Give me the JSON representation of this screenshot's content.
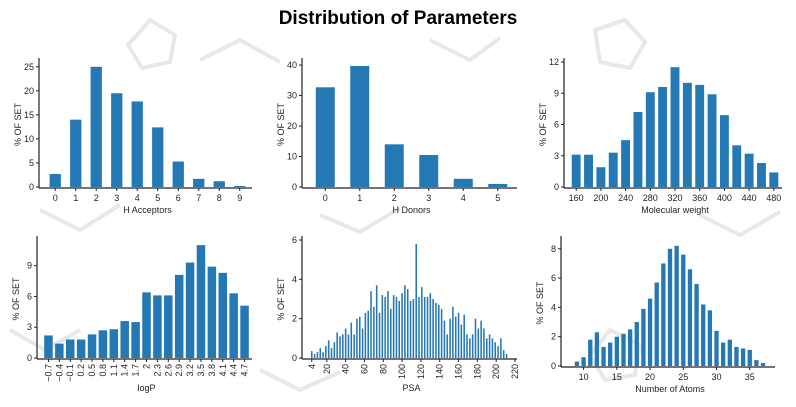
{
  "title": "Distribution of Parameters",
  "colors": {
    "bar": "#2478b4",
    "axis": "#222222",
    "decor": "#e6e6e6"
  },
  "chart_data": [
    {
      "type": "bar",
      "title": "",
      "xlabel": "H Acceptors",
      "ylabel": "% OF SET",
      "categories": [
        "0",
        "1",
        "2",
        "3",
        "4",
        "5",
        "6",
        "7",
        "8",
        "9"
      ],
      "values": [
        2.7,
        14.0,
        25.0,
        19.5,
        17.8,
        12.4,
        5.3,
        1.7,
        1.2,
        0.2
      ],
      "ylim": [
        0,
        26
      ],
      "yticks": [
        0,
        5,
        10,
        15,
        20,
        25
      ],
      "grid": false
    },
    {
      "type": "bar",
      "title": "",
      "xlabel": "H Donors",
      "ylabel": "% OF SET",
      "categories": [
        "0",
        "1",
        "2",
        "3",
        "4",
        "5"
      ],
      "values": [
        32.7,
        39.7,
        14.0,
        10.5,
        2.7,
        1.0
      ],
      "ylim": [
        0,
        41
      ],
      "yticks": [
        0,
        10,
        20,
        30,
        40
      ],
      "grid": false
    },
    {
      "type": "bar",
      "title": "",
      "xlabel": "Molecular weight",
      "ylabel": "% OF SET",
      "x": [
        160,
        180,
        200,
        220,
        240,
        260,
        280,
        300,
        320,
        340,
        360,
        380,
        400,
        420,
        440,
        460,
        480
      ],
      "values": [
        3.1,
        3.1,
        1.9,
        3.3,
        4.5,
        7.2,
        9.1,
        9.6,
        11.5,
        10.0,
        9.8,
        8.9,
        6.9,
        4.0,
        3.2,
        2.3,
        1.4
      ],
      "xticks": [
        160,
        200,
        240,
        280,
        320,
        360,
        400,
        440,
        480
      ],
      "xlim": [
        150,
        490
      ],
      "ylim": [
        0,
        12
      ],
      "yticks": [
        0,
        3,
        6,
        9,
        12
      ],
      "grid": false
    },
    {
      "type": "bar",
      "title": "",
      "xlabel": "logP",
      "ylabel": "% OF SET",
      "categories": [
        "-0.7",
        "-0.4",
        "-0.1",
        "0.2",
        "0.5",
        "0.8",
        "1.1",
        "1.4",
        "1.7",
        "2",
        "2.3",
        "2.6",
        "2.9",
        "3.2",
        "3.5",
        "3.8",
        "4.1",
        "4.4",
        "4.7"
      ],
      "tick_labels": [
        "−0.7",
        "−0.4",
        "−0.1",
        "0.2",
        "0.5",
        "0.8",
        "1.1",
        "1.4",
        "1.7",
        "2",
        "2.3",
        "2.6",
        "2.9",
        "3.2",
        "3.5",
        "3.8",
        "4.1",
        "4.4",
        "4.7"
      ],
      "values": [
        2.2,
        1.4,
        1.8,
        1.8,
        2.3,
        2.7,
        2.8,
        3.6,
        3.5,
        6.4,
        6.1,
        6.1,
        8.1,
        9.3,
        11.0,
        8.9,
        8.3,
        6.3,
        5.1
      ],
      "ylim": [
        0,
        11.5
      ],
      "yticks": [
        0,
        3,
        6,
        9
      ],
      "grid": false
    },
    {
      "type": "bar",
      "title": "",
      "xlabel": "PSA",
      "ylabel": "% OF SET",
      "x_start": 4,
      "x_step": 3,
      "bar_count": 70,
      "values": [
        0.35,
        0.2,
        0.3,
        0.5,
        0.3,
        0.6,
        0.9,
        0.5,
        0.8,
        1.3,
        1.1,
        1.2,
        1.5,
        1.2,
        1.8,
        1.2,
        2.0,
        2.1,
        1.5,
        2.3,
        2.4,
        3.4,
        2.6,
        3.7,
        2.3,
        3.2,
        3.1,
        3.4,
        2.5,
        3.2,
        3.1,
        2.9,
        3.3,
        3.7,
        3.5,
        2.9,
        3.0,
        5.8,
        3.1,
        3.6,
        3.1,
        3.1,
        3.3,
        3.0,
        2.8,
        2.7,
        2.5,
        1.9,
        1.2,
        2.0,
        2.6,
        2.1,
        2.3,
        1.7,
        2.2,
        1.2,
        1.0,
        1.2,
        2.0,
        1.5,
        1.9,
        1.5,
        1.0,
        1.2,
        1.0,
        0.8,
        0.6,
        1.0,
        0.4,
        0.2
      ],
      "xticks": [
        4,
        20,
        40,
        60,
        80,
        100,
        120,
        140,
        160,
        180,
        200,
        220
      ],
      "xlim": [
        0,
        220
      ],
      "ylim": [
        0,
        6
      ],
      "yticks": [
        0,
        2,
        4,
        6
      ],
      "grid": false
    },
    {
      "type": "bar",
      "title": "",
      "xlabel": "Number of Atoms",
      "ylabel": "% OF SET",
      "x": [
        9,
        10,
        11,
        12,
        13,
        14,
        15,
        16,
        17,
        18,
        19,
        20,
        21,
        22,
        23,
        24,
        25,
        26,
        27,
        28,
        29,
        30,
        31,
        32,
        33,
        34,
        35,
        36,
        37
      ],
      "values": [
        0.3,
        0.6,
        1.8,
        2.3,
        1.3,
        1.6,
        2.0,
        2.2,
        2.5,
        3.0,
        3.9,
        4.6,
        5.7,
        7.0,
        8.0,
        8.2,
        7.6,
        6.6,
        5.6,
        4.2,
        3.8,
        2.4,
        1.6,
        1.8,
        1.3,
        1.2,
        1.1,
        0.4,
        0.2
      ],
      "xticks": [
        10,
        15,
        20,
        25,
        30,
        35
      ],
      "xlim": [
        7.5,
        38.5
      ],
      "ylim": [
        0,
        8.6
      ],
      "yticks": [
        0,
        2,
        4,
        6,
        8
      ],
      "grid": false
    }
  ]
}
